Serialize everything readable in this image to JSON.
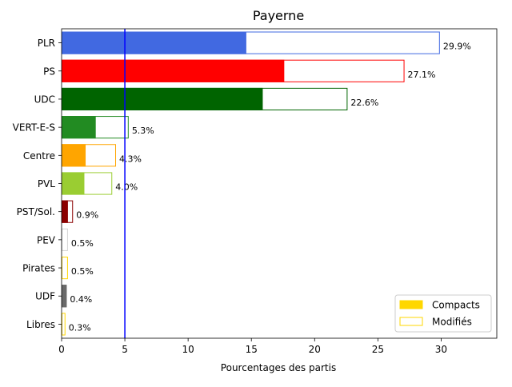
{
  "chart_data": {
    "type": "bar",
    "orientation": "horizontal",
    "title": "Payerne",
    "xlabel": "Pourcentages des partis",
    "ylabel": "",
    "xlim": [
      0,
      34.4
    ],
    "xticks": [
      0,
      5,
      10,
      15,
      20,
      25,
      30
    ],
    "xtick_labels": [
      "0",
      "5",
      "10",
      "15",
      "20",
      "25",
      "30"
    ],
    "reference_line": {
      "x": 5,
      "color": "#0000ff"
    },
    "legend": {
      "placement": "bottom-right",
      "entries": [
        {
          "label": "Compacts",
          "style": "filled",
          "color": "#ffd700"
        },
        {
          "label": "Modifiés",
          "style": "outline",
          "color": "#ffd700"
        }
      ]
    },
    "categories": [
      "PLR",
      "PS",
      "UDC",
      "VERT-E-S",
      "Centre",
      "PVL",
      "PST/Sol.",
      "PEV",
      "Pirates",
      "UDF",
      "Libres"
    ],
    "series": [
      {
        "name": "Compacts",
        "values": [
          14.6,
          17.6,
          15.9,
          2.7,
          1.9,
          1.8,
          0.5,
          0.0,
          0.0,
          0.4,
          0.0
        ]
      },
      {
        "name": "Modifiés",
        "values": [
          29.9,
          27.1,
          22.6,
          5.3,
          4.3,
          4.0,
          0.9,
          0.5,
          0.5,
          0.4,
          0.3
        ]
      }
    ],
    "value_labels": [
      "29.9%",
      "27.1%",
      "22.6%",
      "5.3%",
      "4.3%",
      "4.0%",
      "0.9%",
      "0.5%",
      "0.5%",
      "0.4%",
      "0.3%"
    ],
    "colors": [
      "#4169e1",
      "#ff0000",
      "#006400",
      "#228b22",
      "#ffa500",
      "#9acd32",
      "#8b0000",
      "#d3d3d3",
      "#ffd700",
      "#696969",
      "#ffd700"
    ]
  }
}
